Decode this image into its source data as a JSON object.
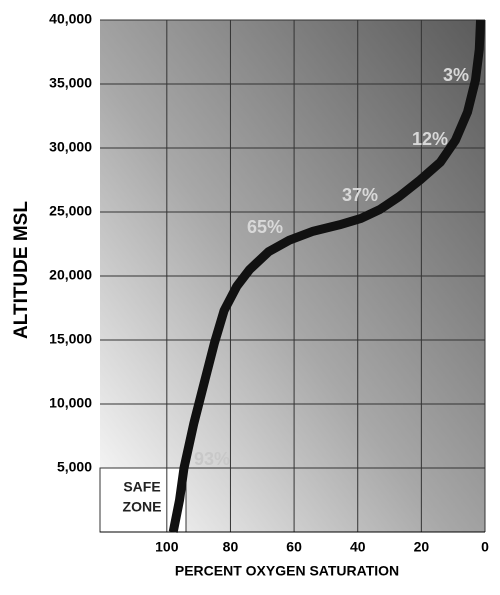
{
  "chart_data": {
    "type": "line",
    "x_label": "PERCENT OXYGEN SATURATION",
    "y_label": "ALTITUDE MSL",
    "x": [
      98,
      96,
      94.6,
      91.5,
      88,
      85,
      82,
      78,
      74,
      68,
      61.5,
      54,
      45.7,
      39,
      33,
      27,
      20.4,
      14,
      9.3,
      5.5,
      3,
      1.8,
      1.4
    ],
    "series": [
      {
        "color": "#111111",
        "values": [
          0,
          2500,
          5000,
          8500,
          11900,
          14800,
          17300,
          19200,
          20500,
          21900,
          22800,
          23500,
          24000,
          24500,
          25200,
          26200,
          27500,
          28900,
          30600,
          32800,
          35300,
          37700,
          40000
        ]
      }
    ],
    "xlim": [
      121,
      0
    ],
    "xticks": [
      100,
      80,
      60,
      40,
      20,
      0
    ],
    "ylim": [
      0,
      40000
    ],
    "yticks": [
      {
        "value": 5000,
        "label": "5,000"
      },
      {
        "value": 10000,
        "label": "10,000"
      },
      {
        "value": 15000,
        "label": "15,000"
      },
      {
        "value": 20000,
        "label": "20,000"
      },
      {
        "value": 25000,
        "label": "25,000"
      },
      {
        "value": 30000,
        "label": "30,000"
      },
      {
        "value": 35000,
        "label": "35,000"
      },
      {
        "value": 40000,
        "label": "40,000"
      }
    ],
    "grid": true,
    "annotations": [
      "3%",
      "12%",
      "37%",
      "65%",
      "93%"
    ],
    "safe_zone_label": [
      "SAFE",
      "ZONE"
    ]
  }
}
